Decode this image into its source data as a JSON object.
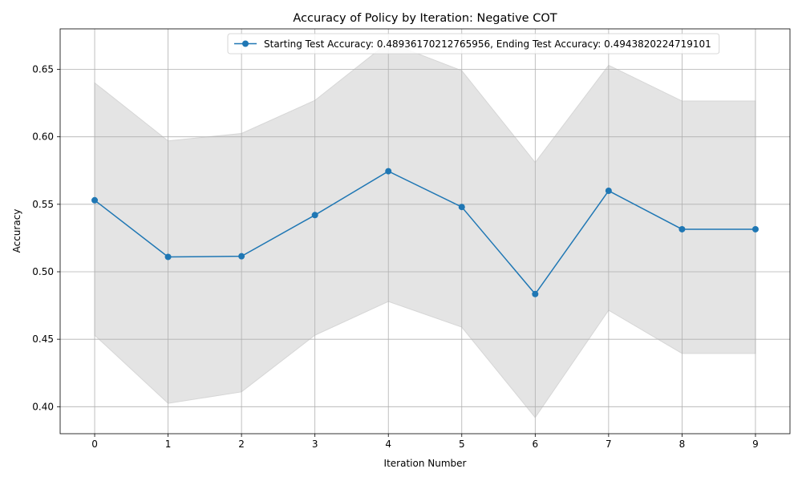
{
  "chart_data": {
    "type": "line",
    "title": "Accuracy of Policy by Iteration: Negative COT",
    "xlabel": "Iteration Number",
    "ylabel": "Accuracy",
    "xlim": [
      -0.47,
      9.47
    ],
    "ylim": [
      0.38,
      0.68
    ],
    "x_ticks": [
      0,
      1,
      2,
      3,
      4,
      5,
      6,
      7,
      8,
      9
    ],
    "y_ticks": [
      0.4,
      0.45,
      0.5,
      0.55,
      0.6,
      0.65
    ],
    "y_tick_labels": [
      "0.40",
      "0.45",
      "0.50",
      "0.55",
      "0.60",
      "0.65"
    ],
    "grid": true,
    "legend_position": "top-right",
    "series": [
      {
        "name": "Starting Test Accuracy: 0.48936170212765956, Ending Test Accuracy: 0.4943820224719101",
        "color": "#1f77b4",
        "marker": "circle",
        "x": [
          0,
          1,
          2,
          3,
          4,
          5,
          6,
          7,
          8,
          9
        ],
        "y": [
          0.553,
          0.511,
          0.5115,
          0.542,
          0.5745,
          0.548,
          0.4835,
          0.56,
          0.5315,
          0.5315
        ]
      }
    ],
    "band": {
      "color": "#e4e4e4",
      "edge_color": "#d6d6d6",
      "x": [
        0,
        1,
        2,
        3,
        4,
        5,
        6,
        7,
        8,
        9
      ],
      "lower": [
        0.453,
        0.4025,
        0.411,
        0.453,
        0.478,
        0.459,
        0.392,
        0.4715,
        0.4395,
        0.4395
      ],
      "upper": [
        0.64,
        0.597,
        0.6025,
        0.627,
        0.67,
        0.649,
        0.581,
        0.653,
        0.6265,
        0.6265
      ]
    }
  }
}
